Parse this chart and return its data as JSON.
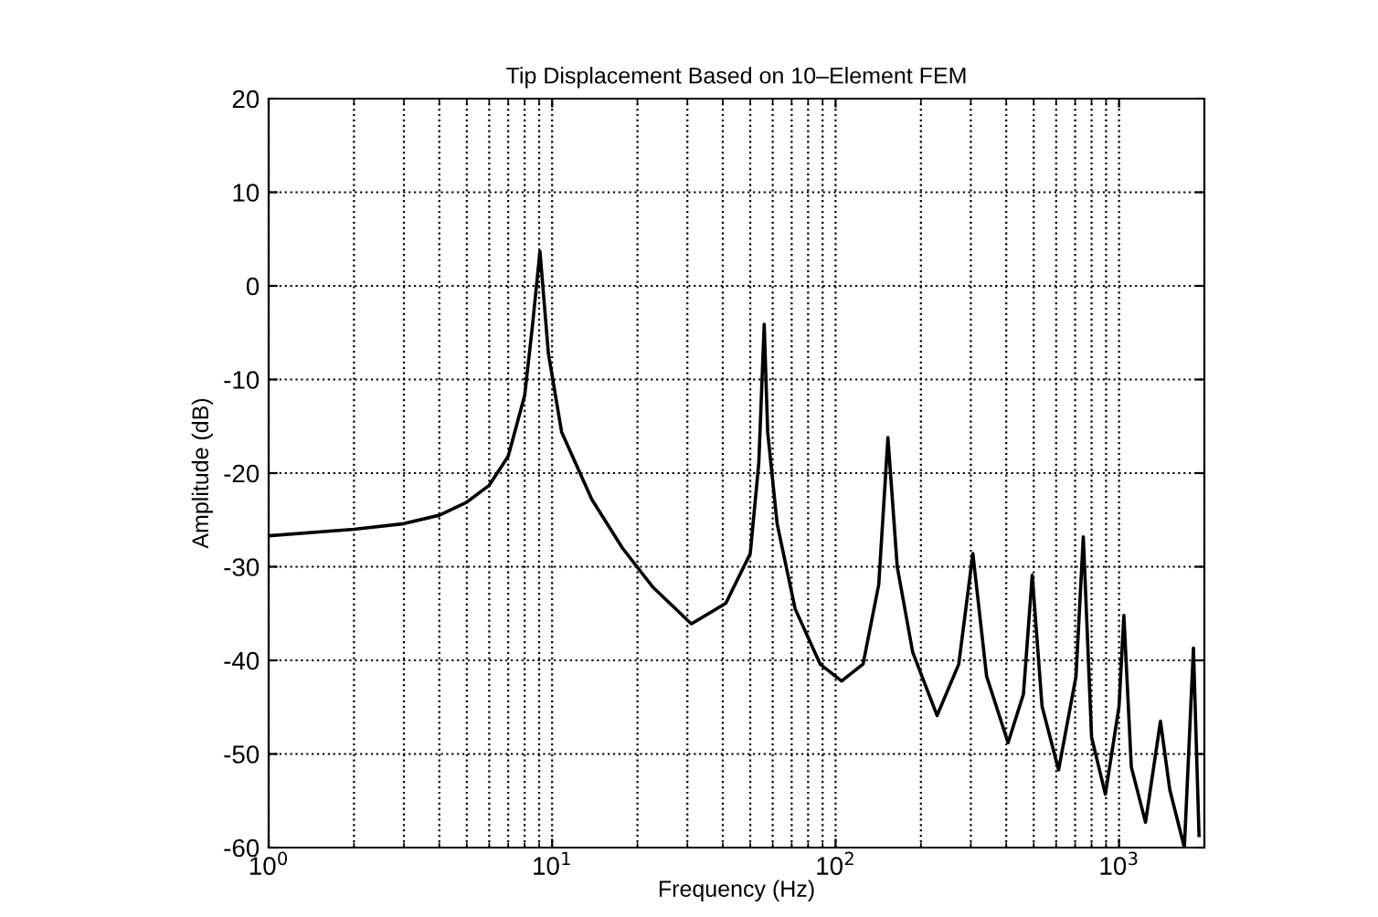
{
  "chart_data": {
    "type": "line",
    "title": "Tip Displacement Based on 10–Element FEM",
    "xlabel": "Frequency (Hz)",
    "ylabel": "Amplitude (dB)",
    "log": "x",
    "grid": true,
    "line_style": "solid",
    "marker": "none",
    "xlim": [
      1,
      2000
    ],
    "ylim": [
      -60,
      20
    ],
    "xticks": [
      {
        "value": 1,
        "label": "10$^{0}$"
      },
      {
        "value": 10,
        "label": "10$^{1}$"
      },
      {
        "value": 100,
        "label": "10$^{2}$"
      },
      {
        "value": 1000,
        "label": "10$^{3}$"
      }
    ],
    "yticks": [
      -60,
      -50,
      -40,
      -30,
      -20,
      -10,
      0,
      10,
      20
    ],
    "series": [
      {
        "color": "#000000",
        "x": [
          1,
          2,
          3,
          4,
          5,
          6,
          7,
          8,
          8.5,
          9.06,
          9.7,
          10.8,
          13.8,
          17.7,
          22.7,
          30.5,
          31,
          41,
          50,
          53.6,
          56,
          57.6,
          62.2,
          72,
          88.2,
          105,
          125,
          142,
          153,
          165,
          187,
          228,
          272,
          305,
          341,
          406,
          460,
          494,
          535,
          612,
          705,
          748,
          800,
          895,
          1000,
          1040,
          1105,
          1240,
          1400,
          1510,
          1700,
          1830,
          1915
        ],
        "values": [
          -26.7,
          -26,
          -25.4,
          -24.5,
          -23.1,
          -21.3,
          -18.2,
          -11.7,
          -4.6,
          3.7,
          -7.2,
          -15.6,
          -22.8,
          -28,
          -32.2,
          -35.9,
          -36.1,
          -33.9,
          -28.6,
          -18.9,
          -4.1,
          -15.6,
          -25.4,
          -34.5,
          -40.4,
          -42.2,
          -40.4,
          -31.9,
          -16.2,
          -30,
          -39.1,
          -45.9,
          -40.4,
          -28.6,
          -41.7,
          -48.8,
          -43.6,
          -30.9,
          -44.9,
          -51.7,
          -41.7,
          -26.8,
          -48.2,
          -54.3,
          -44.9,
          -35.2,
          -51.4,
          -57.3,
          -46.5,
          -53.8,
          -60,
          -38.7,
          -58.7
        ]
      }
    ]
  }
}
